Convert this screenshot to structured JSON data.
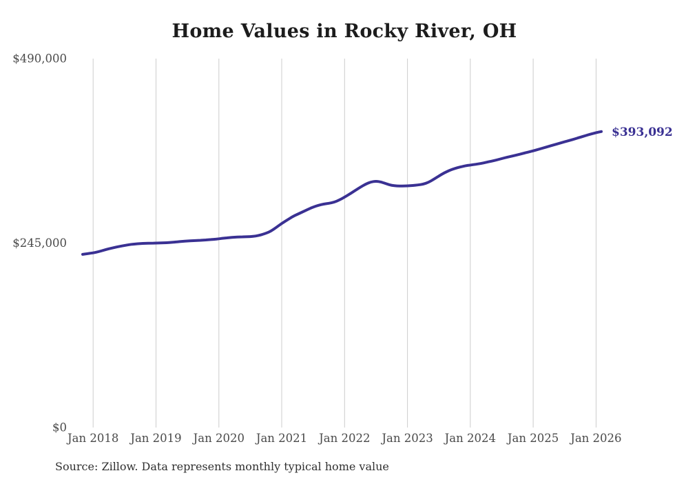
{
  "chart_data": {
    "type": "line",
    "title": "Home Values in Rocky River, OH",
    "source_note": "Source: Zillow. Data represents monthly typical home value",
    "x_axis": {
      "unit": "month",
      "start_month": "2017-11",
      "frequency": "monthly",
      "tick_labels": [
        "Jan 2018",
        "Jan 2019",
        "Jan 2020",
        "Jan 2021",
        "Jan 2022",
        "Jan 2023",
        "Jan 2024",
        "Jan 2025",
        "Jan 2026"
      ],
      "tick_indices": [
        2,
        14,
        26,
        38,
        50,
        62,
        74,
        86,
        98
      ]
    },
    "y_axis": {
      "label_prefix": "$",
      "range": [
        0,
        490000
      ],
      "ticks": [
        {
          "label": "$0",
          "value": 0
        },
        {
          "label": "$245,000",
          "value": 245000
        },
        {
          "label": "$490,000",
          "value": 490000
        }
      ]
    },
    "grid": {
      "vertical": true,
      "horizontal": false
    },
    "series": [
      {
        "name": "Monthly typical home value",
        "end_label": "$393,092",
        "end_value": 393092,
        "values": [
          230000,
          231000,
          232000,
          233500,
          235500,
          237500,
          239000,
          240500,
          241800,
          243000,
          243800,
          244300,
          244700,
          244900,
          245000,
          245200,
          245500,
          246000,
          246600,
          247200,
          247700,
          248100,
          248500,
          248900,
          249400,
          250000,
          250700,
          251500,
          252300,
          252900,
          253200,
          253300,
          253500,
          254200,
          255800,
          258000,
          261000,
          266000,
          271000,
          275500,
          279800,
          283200,
          286500,
          289800,
          292800,
          295200,
          296800,
          297800,
          299200,
          302200,
          306000,
          310200,
          314800,
          319200,
          323200,
          326200,
          327200,
          326200,
          323600,
          321600,
          320900,
          320800,
          321000,
          321500,
          322100,
          323200,
          325600,
          329600,
          334000,
          338200,
          341400,
          344000,
          346000,
          347600,
          348600,
          349600,
          350700,
          352200,
          353700,
          355300,
          357200,
          359000,
          360600,
          362200,
          364000,
          365700,
          367500,
          369500,
          371500,
          373500,
          375500,
          377500,
          379500,
          381500,
          383500,
          385600,
          387700,
          389900,
          391600,
          393092
        ]
      }
    ]
  },
  "colors": {
    "line": "#3a3193",
    "end_label_text": "#3a3193",
    "grid_line": "#cccccc",
    "tick_text": "#4a4a4a",
    "title_text": "#1c1c1c",
    "source_text": "#303030",
    "background": "#ffffff"
  }
}
